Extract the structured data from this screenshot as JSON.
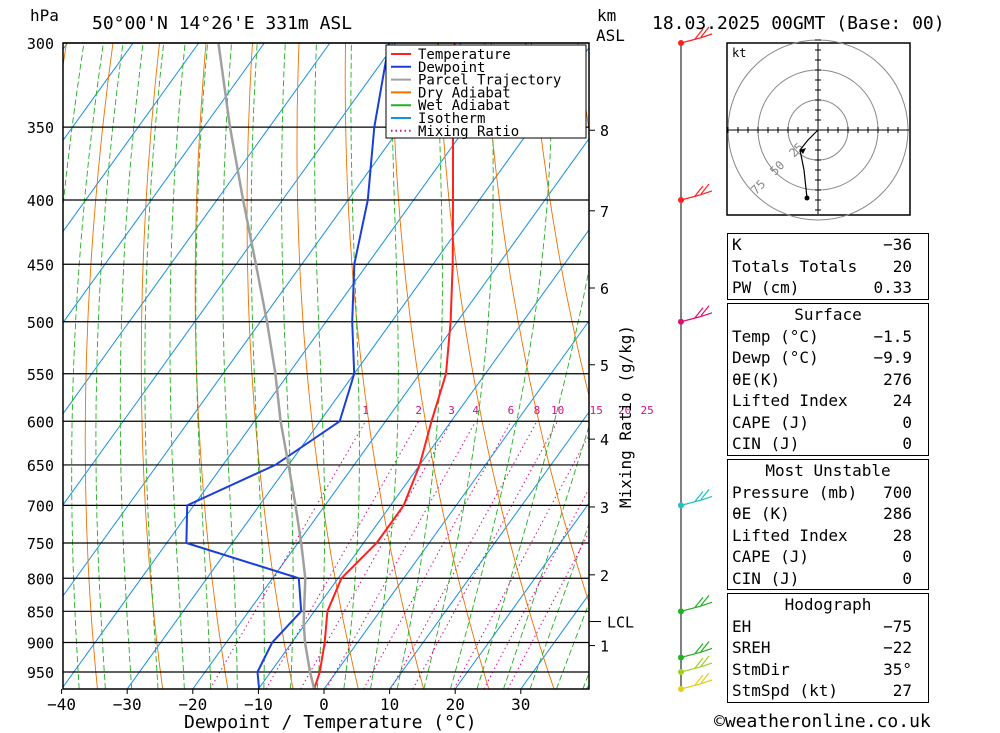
{
  "header": {
    "hpa_label": "hPa",
    "location": "50°00'N 14°26'E 331m ASL",
    "km_label": "km",
    "asl_label": "ASL",
    "datetime": "18.03.2025 00GMT (Base: 00)"
  },
  "legend": [
    {
      "label": "Temperature",
      "color": "#ff2020",
      "style": "solid"
    },
    {
      "label": "Dewpoint",
      "color": "#1a3fd8",
      "style": "solid"
    },
    {
      "label": "Parcel Trajectory",
      "color": "#a0a0a0",
      "style": "solid"
    },
    {
      "label": "Dry Adiabat",
      "color": "#f07000",
      "style": "solid"
    },
    {
      "label": "Wet Adiabat",
      "color": "#20b020",
      "style": "solid"
    },
    {
      "label": "Isotherm",
      "color": "#1890e0",
      "style": "solid"
    },
    {
      "label": "Mixing Ratio",
      "color": "#d0108a",
      "style": "dotted"
    }
  ],
  "chart_data": {
    "type": "line",
    "subtype": "skew-T log-p diagram",
    "xlabel": "Dewpoint / Temperature (°C)",
    "ylabel_left": "hPa",
    "ylabel_right": "km ASL",
    "mixing_ratio_axis_label": "Mixing Ratio (g/kg)",
    "x_ticks": [
      -40,
      -30,
      -20,
      -10,
      0,
      10,
      20,
      30
    ],
    "x_tick_labels": [
      "−40",
      "−30",
      "−20",
      "−10",
      "0",
      "10",
      "20",
      "30"
    ],
    "pressure_levels": [
      300,
      350,
      400,
      450,
      500,
      550,
      600,
      650,
      700,
      750,
      800,
      850,
      900,
      950
    ],
    "xlim": [
      -40,
      40
    ],
    "plim": [
      300,
      980
    ],
    "km_ticks": [
      {
        "label": "8",
        "p": 352
      },
      {
        "label": "7",
        "p": 408
      },
      {
        "label": "6",
        "p": 470
      },
      {
        "label": "5",
        "p": 541
      },
      {
        "label": "4",
        "p": 620
      },
      {
        "label": "3",
        "p": 702
      },
      {
        "label": "2",
        "p": 795
      },
      {
        "label": "1",
        "p": 905
      }
    ],
    "lcl": {
      "label": "LCL",
      "p": 866
    },
    "mixing_ratio_labels": [
      "1",
      "2",
      "3",
      "4",
      "6",
      "8",
      "10",
      "15",
      "20",
      "25"
    ],
    "mixing_ratio_values": [
      1,
      2,
      3,
      4,
      6,
      8,
      10,
      15,
      20,
      25
    ],
    "series": [
      {
        "name": "Temperature",
        "color": "#ff2020",
        "points": [
          [
            980,
            -1.5
          ],
          [
            950,
            -2.5
          ],
          [
            900,
            -5
          ],
          [
            850,
            -8
          ],
          [
            800,
            -9.5
          ],
          [
            750,
            -8
          ],
          [
            700,
            -8
          ],
          [
            650,
            -10
          ],
          [
            600,
            -13
          ],
          [
            550,
            -16
          ],
          [
            500,
            -21
          ],
          [
            450,
            -27
          ],
          [
            400,
            -34
          ],
          [
            350,
            -42
          ],
          [
            300,
            -51
          ]
        ]
      },
      {
        "name": "Dewpoint",
        "color": "#1a3fd8",
        "points": [
          [
            980,
            -9.9
          ],
          [
            950,
            -12
          ],
          [
            900,
            -13
          ],
          [
            850,
            -12
          ],
          [
            800,
            -16
          ],
          [
            750,
            -37
          ],
          [
            700,
            -41
          ],
          [
            650,
            -32
          ],
          [
            600,
            -27
          ],
          [
            550,
            -30
          ],
          [
            500,
            -36
          ],
          [
            450,
            -42
          ],
          [
            400,
            -47
          ],
          [
            350,
            -54
          ],
          [
            300,
            -61
          ]
        ]
      },
      {
        "name": "Parcel Trajectory",
        "color": "#a0a0a0",
        "points": [
          [
            980,
            -1.5
          ],
          [
            950,
            -4
          ],
          [
            900,
            -8
          ],
          [
            866,
            -10.5
          ],
          [
            800,
            -15
          ],
          [
            750,
            -19.5
          ],
          [
            700,
            -24.5
          ],
          [
            650,
            -30
          ],
          [
            600,
            -36
          ],
          [
            550,
            -42
          ],
          [
            500,
            -49
          ],
          [
            450,
            -57
          ],
          [
            400,
            -66
          ],
          [
            350,
            -76
          ],
          [
            300,
            -87
          ]
        ]
      }
    ],
    "wind_barbs": [
      {
        "p": 300,
        "color": "#ff2020"
      },
      {
        "p": 400,
        "color": "#ff2020"
      },
      {
        "p": 500,
        "color": "#e0106a"
      },
      {
        "p": 700,
        "color": "#20c0c0"
      },
      {
        "p": 850,
        "color": "#20b020"
      },
      {
        "p": 925,
        "color": "#20b020"
      },
      {
        "p": 950,
        "color": "#a0d020"
      },
      {
        "p": 980,
        "color": "#e0d020"
      }
    ]
  },
  "hodograph": {
    "unit_label": "kt",
    "ring_labels": [
      "25",
      "50",
      "75"
    ]
  },
  "indices": {
    "k_label": "K",
    "k_value": "−36",
    "tt_label": "Totals Totals",
    "tt_value": "20",
    "pw_label": "PW (cm)",
    "pw_value": "0.33"
  },
  "surface": {
    "title": "Surface",
    "temp_label": "Temp (°C)",
    "temp_value": "−1.5",
    "dewp_label": "Dewp (°C)",
    "dewp_value": "−9.9",
    "theta_label": "θE(K)",
    "theta_value": "276",
    "li_label": "Lifted Index",
    "li_value": "24",
    "cape_label": "CAPE (J)",
    "cape_value": "0",
    "cin_label": "CIN (J)",
    "cin_value": "0"
  },
  "most_unstable": {
    "title": "Most Unstable",
    "pressure_label": "Pressure (mb)",
    "pressure_value": "700",
    "theta_label": "θE (K)",
    "theta_value": "286",
    "li_label": "Lifted Index",
    "li_value": "28",
    "cape_label": "CAPE (J)",
    "cape_value": "0",
    "cin_label": "CIN (J)",
    "cin_value": "0"
  },
  "hodograph_table": {
    "title": "Hodograph",
    "eh_label": "EH",
    "eh_value": "−75",
    "sreh_label": "SREH",
    "sreh_value": "−22",
    "stmdir_label": "StmDir",
    "stmdir_value": "35°",
    "stmspd_label": "StmSpd (kt)",
    "stmspd_value": "27"
  },
  "footer": {
    "copyright": "©weatheronline.co.uk"
  }
}
